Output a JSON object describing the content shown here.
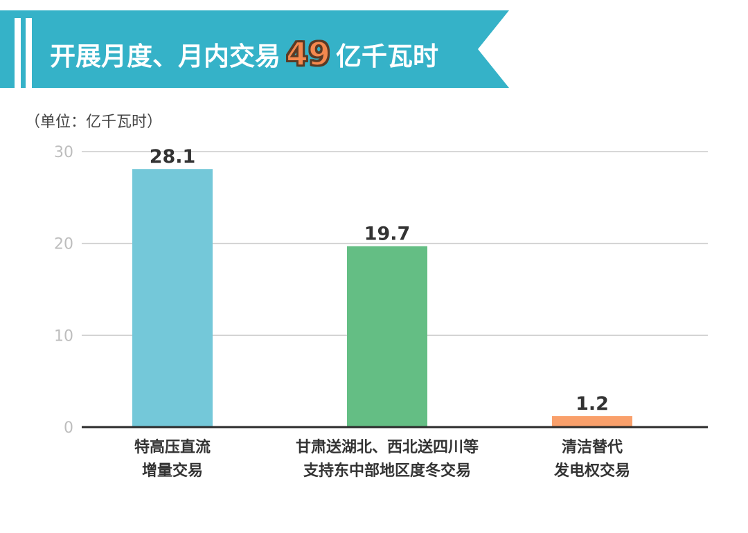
{
  "header": {
    "title_before": "开展月度、月内交易",
    "title_number": "49",
    "title_after": "亿千瓦时"
  },
  "unit_label": "（单位：亿千瓦时）",
  "colors": {
    "banner": "#35b2c8",
    "accent_number": "#f5884e",
    "gridline": "#cccccc"
  },
  "chart_data": {
    "type": "bar",
    "title": "开展月度、月内交易49亿千瓦时",
    "ylabel": "（单位：亿千瓦时）",
    "ylim": [
      0,
      30
    ],
    "yticks": [
      0,
      10,
      20,
      30
    ],
    "grid": true,
    "categories": [
      [
        "特高压直流",
        "增量交易"
      ],
      [
        "甘肃送湖北、西北送四川等",
        "支持东中部地区度冬交易"
      ],
      [
        "清洁替代",
        "发电权交易"
      ]
    ],
    "values": [
      28.1,
      19.7,
      1.2
    ],
    "value_labels": [
      "28.1",
      "19.7",
      "1.2"
    ],
    "bar_colors": [
      "#74c8d9",
      "#64be84",
      "#f9a06b"
    ]
  }
}
